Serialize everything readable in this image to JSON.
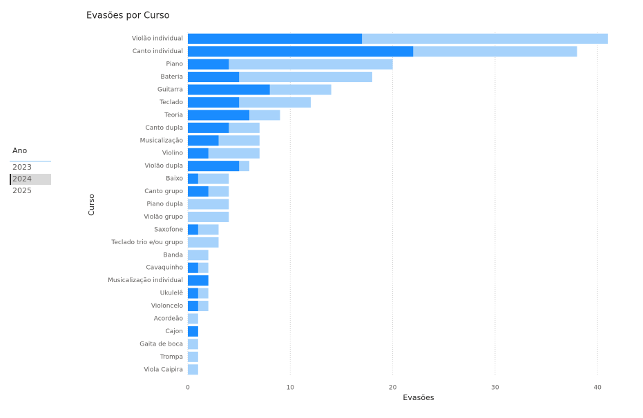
{
  "slicer": {
    "title": "Ano",
    "items": [
      "2023",
      "2024",
      "2025"
    ],
    "selected_index": 1
  },
  "chart_data": {
    "type": "hbar_overlay",
    "title": "Evasões por Curso",
    "xlabel": "Evasões",
    "ylabel": "Curso",
    "categories": [
      "Violão individual",
      "Canto individual",
      "Piano",
      "Bateria",
      "Guitarra",
      "Teclado",
      "Teoria",
      "Canto dupla",
      "Musicalização",
      "Violino",
      "Violão dupla",
      "Baixo",
      "Canto grupo",
      "Piano dupla",
      "Violão grupo",
      "Saxofone",
      "Teclado trio e/ou grupo",
      "Banda",
      "Cavaquinho",
      "Musicalização individual",
      "Ukulelê",
      "Violoncelo",
      "Acordeão",
      "Cajon",
      "Gaita de boca",
      "Trompa",
      "Viola Caipira"
    ],
    "series": [
      {
        "color": "#a6d2fb",
        "values": [
          41,
          38,
          20,
          18,
          14,
          12,
          9,
          7,
          7,
          7,
          6,
          4,
          4,
          4,
          4,
          3,
          3,
          2,
          2,
          2,
          2,
          2,
          1,
          1,
          1,
          1,
          1
        ]
      },
      {
        "color": "#1a8cff",
        "values": [
          17,
          22,
          4,
          5,
          8,
          5,
          6,
          4,
          3,
          2,
          5,
          1,
          2,
          0,
          0,
          1,
          0,
          0,
          1,
          2,
          1,
          1,
          0,
          1,
          0,
          0,
          0
        ]
      }
    ],
    "xlim": [
      0,
      41
    ],
    "xticks": [
      0,
      10,
      20,
      30,
      40
    ],
    "grid": true
  }
}
